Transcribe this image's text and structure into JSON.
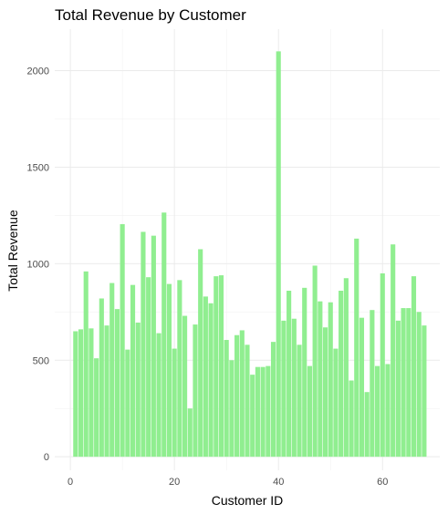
{
  "chart_data": {
    "type": "bar",
    "title": "Total Revenue by Customer",
    "xlabel": "Customer ID",
    "ylabel": "Total Revenue",
    "x": [
      1,
      2,
      3,
      4,
      5,
      6,
      7,
      8,
      9,
      10,
      11,
      12,
      13,
      14,
      15,
      16,
      17,
      18,
      19,
      20,
      21,
      22,
      23,
      24,
      25,
      26,
      27,
      28,
      29,
      30,
      31,
      32,
      33,
      34,
      35,
      36,
      37,
      38,
      39,
      40,
      41,
      42,
      43,
      44,
      45,
      46,
      47,
      48,
      49,
      50,
      51,
      52,
      53,
      54,
      55,
      56,
      57,
      58,
      59,
      60,
      61,
      62,
      63,
      64,
      65,
      66,
      67,
      68
    ],
    "values": [
      650,
      660,
      960,
      665,
      510,
      820,
      680,
      900,
      765,
      1205,
      555,
      890,
      695,
      1165,
      930,
      1145,
      640,
      1265,
      895,
      560,
      915,
      730,
      250,
      685,
      1075,
      830,
      795,
      935,
      940,
      605,
      500,
      630,
      655,
      580,
      425,
      465,
      465,
      470,
      595,
      2100,
      705,
      860,
      715,
      580,
      875,
      470,
      990,
      805,
      670,
      800,
      560,
      860,
      925,
      395,
      1130,
      720,
      335,
      760,
      470,
      950,
      480,
      1100,
      705,
      770,
      770,
      935,
      750,
      680
    ],
    "xlim": [
      -3,
      71
    ],
    "ylim": [
      -70,
      2215
    ],
    "xticks": [
      0,
      20,
      40,
      60
    ],
    "yticks": [
      0,
      500,
      1000,
      1500,
      2000
    ],
    "bar_color": "#90ee90",
    "grid": true
  }
}
